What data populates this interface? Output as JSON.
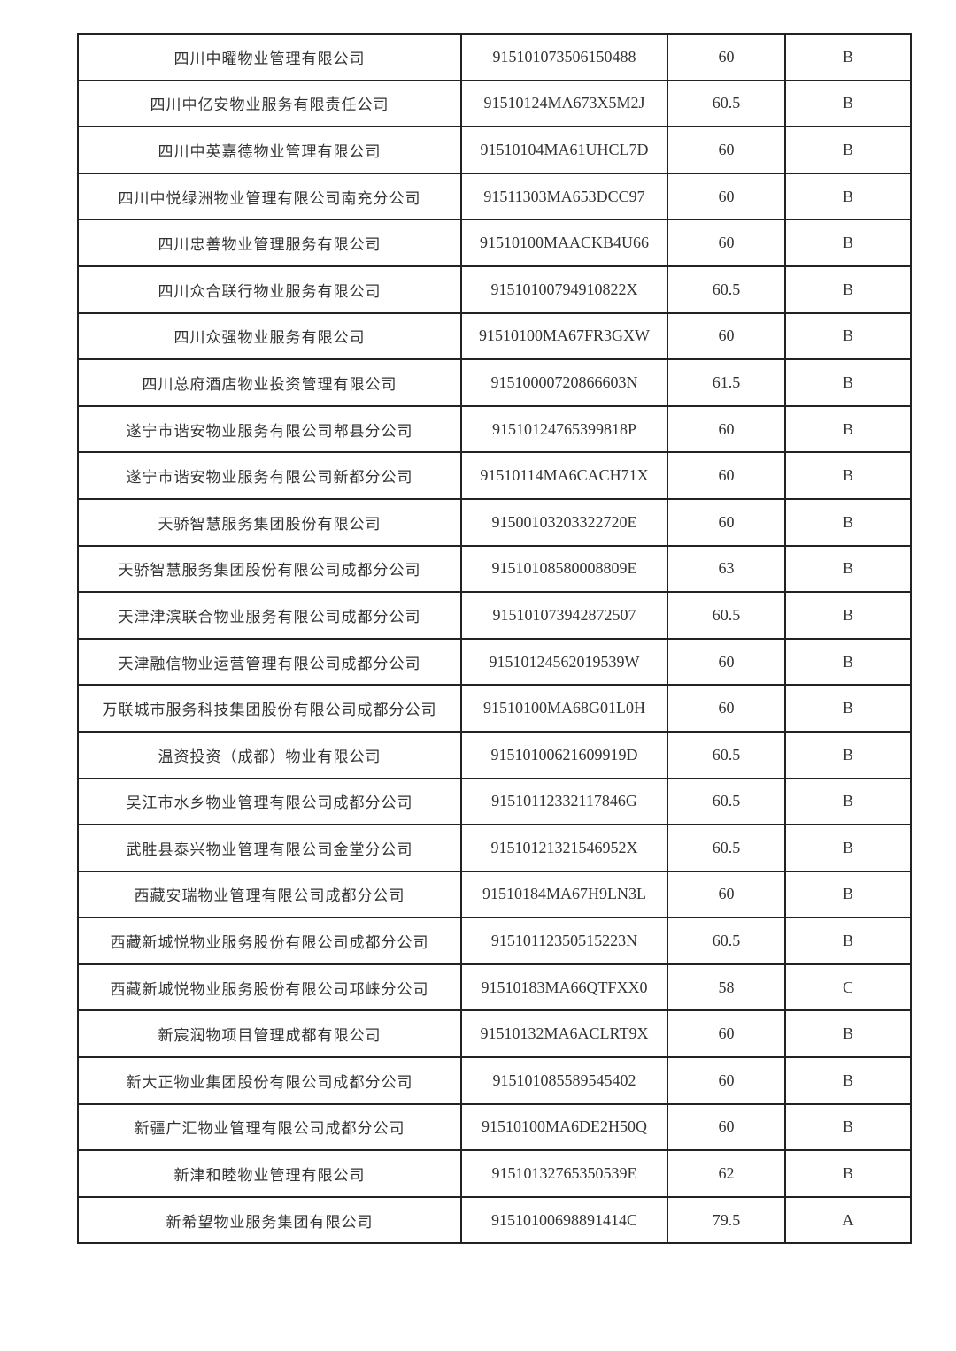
{
  "table": {
    "rows": [
      {
        "name": "四川中曜物业管理有限公司",
        "code": "915101073506150488",
        "score": "60",
        "grade": "B"
      },
      {
        "name": "四川中亿安物业服务有限责任公司",
        "code": "91510124MA673X5M2J",
        "score": "60.5",
        "grade": "B"
      },
      {
        "name": "四川中英嘉德物业管理有限公司",
        "code": "91510104MA61UHCL7D",
        "score": "60",
        "grade": "B"
      },
      {
        "name": "四川中悦绿洲物业管理有限公司南充分公司",
        "code": "91511303MA653DCC97",
        "score": "60",
        "grade": "B"
      },
      {
        "name": "四川忠善物业管理服务有限公司",
        "code": "91510100MAACKB4U66",
        "score": "60",
        "grade": "B"
      },
      {
        "name": "四川众合联行物业服务有限公司",
        "code": "91510100794910822X",
        "score": "60.5",
        "grade": "B"
      },
      {
        "name": "四川众强物业服务有限公司",
        "code": "91510100MA67FR3GXW",
        "score": "60",
        "grade": "B"
      },
      {
        "name": "四川总府酒店物业投资管理有限公司",
        "code": "91510000720866603N",
        "score": "61.5",
        "grade": "B"
      },
      {
        "name": "遂宁市谐安物业服务有限公司郫县分公司",
        "code": "91510124765399818P",
        "score": "60",
        "grade": "B"
      },
      {
        "name": "遂宁市谐安物业服务有限公司新都分公司",
        "code": "91510114MA6CACH71X",
        "score": "60",
        "grade": "B"
      },
      {
        "name": "天骄智慧服务集团股份有限公司",
        "code": "91500103203322720E",
        "score": "60",
        "grade": "B"
      },
      {
        "name": "天骄智慧服务集团股份有限公司成都分公司",
        "code": "91510108580008809E",
        "score": "63",
        "grade": "B"
      },
      {
        "name": "天津津滨联合物业服务有限公司成都分公司",
        "code": "915101073942872507",
        "score": "60.5",
        "grade": "B"
      },
      {
        "name": "天津融信物业运营管理有限公司成都分公司",
        "code": "91510124562019539W",
        "score": "60",
        "grade": "B"
      },
      {
        "name": "万联城市服务科技集团股份有限公司成都分公司",
        "code": "91510100MA68G01L0H",
        "score": "60",
        "grade": "B"
      },
      {
        "name": "温资投资（成都）物业有限公司",
        "code": "91510100621609919D",
        "score": "60.5",
        "grade": "B"
      },
      {
        "name": "吴江市水乡物业管理有限公司成都分公司",
        "code": "91510112332117846G",
        "score": "60.5",
        "grade": "B"
      },
      {
        "name": "武胜县泰兴物业管理有限公司金堂分公司",
        "code": "91510121321546952X",
        "score": "60.5",
        "grade": "B"
      },
      {
        "name": "西藏安瑞物业管理有限公司成都分公司",
        "code": "91510184MA67H9LN3L",
        "score": "60",
        "grade": "B"
      },
      {
        "name": "西藏新城悦物业服务股份有限公司成都分公司",
        "code": "91510112350515223N",
        "score": "60.5",
        "grade": "B"
      },
      {
        "name": "西藏新城悦物业服务股份有限公司邛崃分公司",
        "code": "91510183MA66QTFXX0",
        "score": "58",
        "grade": "C"
      },
      {
        "name": "新宸润物项目管理成都有限公司",
        "code": "91510132MA6ACLRT9X",
        "score": "60",
        "grade": "B"
      },
      {
        "name": "新大正物业集团股份有限公司成都分公司",
        "code": "915101085589545402",
        "score": "60",
        "grade": "B"
      },
      {
        "name": "新疆广汇物业管理有限公司成都分公司",
        "code": "91510100MA6DE2H50Q",
        "score": "60",
        "grade": "B"
      },
      {
        "name": "新津和睦物业管理有限公司",
        "code": "91510132765350539E",
        "score": "62",
        "grade": "B"
      },
      {
        "name": "新希望物业服务集团有限公司",
        "code": "91510100698891414C",
        "score": "79.5",
        "grade": "A"
      }
    ]
  }
}
